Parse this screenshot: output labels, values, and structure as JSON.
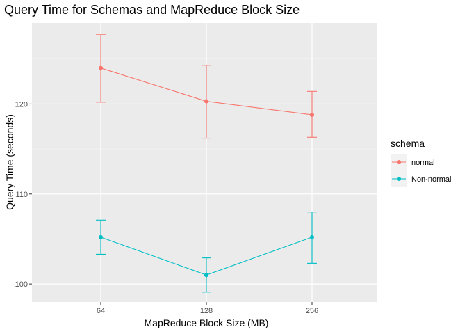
{
  "chart_data": {
    "type": "line",
    "title": "Query Time for Schemas and MapReduce Block Size",
    "xlabel": "MapReduce Block Size (MB)",
    "ylabel": "Query Time (seconds)",
    "categories": [
      "64",
      "128",
      "256"
    ],
    "ylim": [
      98,
      129
    ],
    "yticks": [
      100,
      110,
      120
    ],
    "grid": true,
    "legend": {
      "title": "schema",
      "position": "right"
    },
    "series": [
      {
        "name": "normal",
        "color": "#F8766D",
        "values": [
          124.0,
          120.3,
          118.8
        ],
        "error_lower": [
          120.2,
          116.2,
          116.3
        ],
        "error_upper": [
          127.7,
          124.3,
          121.4
        ]
      },
      {
        "name": "Non-normal",
        "color": "#00BFC4",
        "values": [
          105.2,
          101.0,
          105.2
        ],
        "error_lower": [
          103.3,
          99.1,
          102.3
        ],
        "error_upper": [
          107.1,
          102.9,
          108.0
        ]
      }
    ]
  }
}
